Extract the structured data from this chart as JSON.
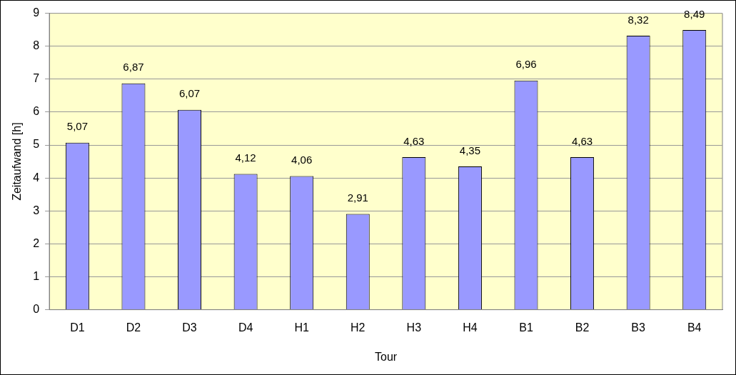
{
  "chart_data": {
    "type": "bar",
    "xlabel": "Tour",
    "ylabel": "Zeitaufwand [h]",
    "categories": [
      "D1",
      "D2",
      "D3",
      "D4",
      "H1",
      "H2",
      "H3",
      "H4",
      "B1",
      "B2",
      "B3",
      "B4"
    ],
    "values": [
      5.07,
      6.87,
      6.07,
      4.12,
      4.06,
      2.91,
      4.63,
      4.35,
      6.96,
      4.63,
      8.32,
      8.49
    ],
    "value_labels": [
      "5,07",
      "6,87",
      "6,07",
      "4,12",
      "4,06",
      "2,91",
      "4,63",
      "4,35",
      "6,96",
      "4,63",
      "8,32",
      "8,49"
    ],
    "color": "#9999ff",
    "ylim": [
      0,
      9
    ],
    "yticks": [
      0,
      1,
      2,
      3,
      4,
      5,
      6,
      7,
      8,
      9
    ],
    "grid": "y",
    "legend": false
  }
}
